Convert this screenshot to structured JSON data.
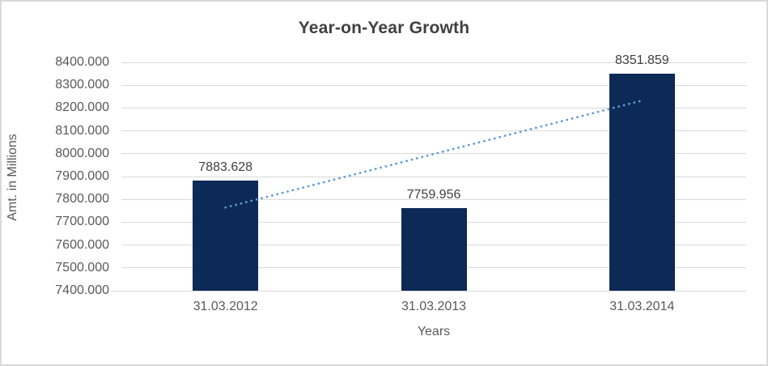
{
  "chart_data": {
    "type": "bar",
    "title": "Year-on-Year Growth",
    "xlabel": "Years",
    "ylabel": "Amt. in Millions",
    "categories": [
      "31.03.2012",
      "31.03.2013",
      "31.03.2014"
    ],
    "values": [
      7883.628,
      7759.956,
      8351.859
    ],
    "data_labels": [
      "7883.628",
      "7759.956",
      "8351.859"
    ],
    "ylim": [
      7400,
      8400
    ],
    "ytick_step": 100,
    "ytick_labels": [
      "8400.000",
      "8300.000",
      "8200.000",
      "8100.000",
      "8000.000",
      "7900.000",
      "7800.000",
      "7700.000",
      "7600.000",
      "7500.000",
      "7400.000"
    ],
    "grid": true,
    "legend": "none",
    "bar_color": "#0D2A56",
    "trendline": {
      "type": "linear",
      "style": "dotted",
      "color": "#5B9BD5",
      "start_value": 7764.4,
      "end_value": 8232.6
    }
  },
  "colors": {
    "background": "#FFFFFF",
    "border": "#D9D9D9",
    "gridline": "#D9D9D9",
    "title_text": "#404040",
    "axis_text": "#595959",
    "bar": "#0D2A56",
    "trendline": "#5B9BD5"
  }
}
